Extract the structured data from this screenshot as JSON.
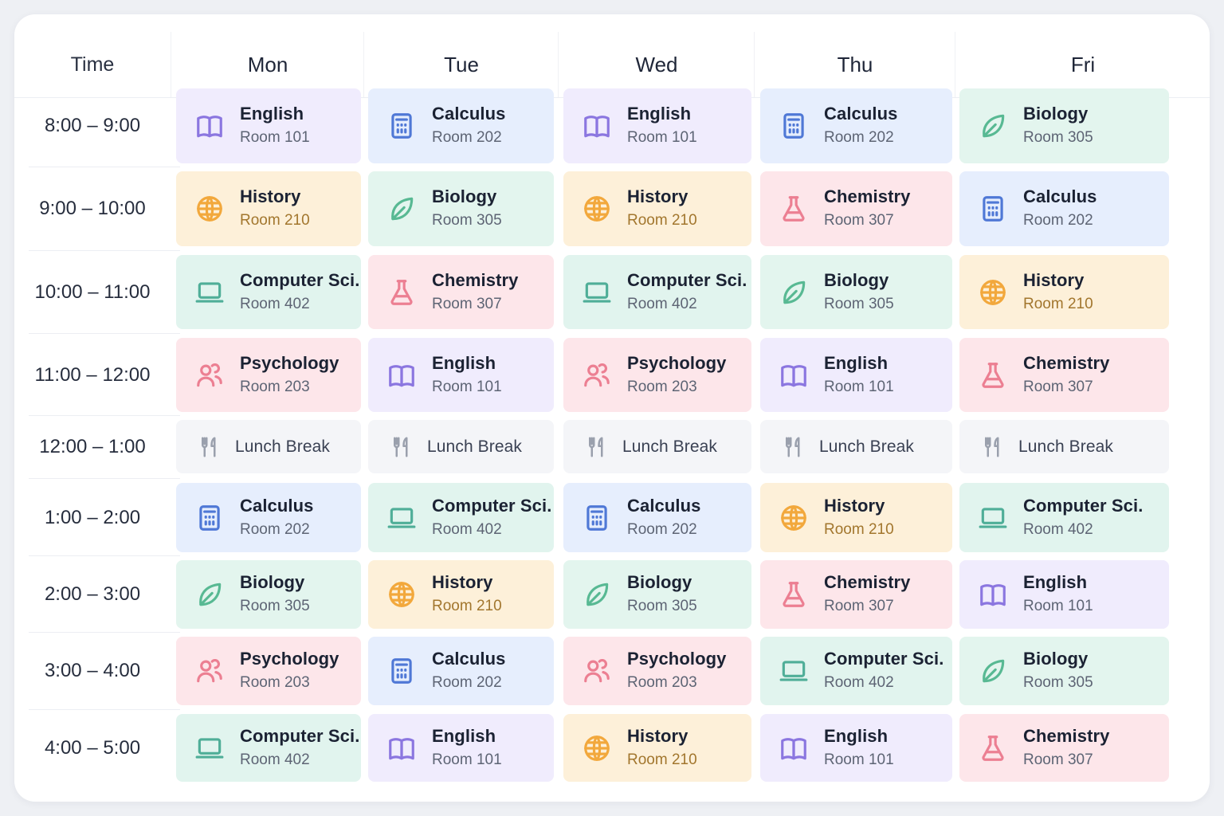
{
  "header": {
    "time_label": "Time",
    "days": [
      "Mon",
      "Tue",
      "Wed",
      "Thu",
      "Fri"
    ]
  },
  "subjects": {
    "english": {
      "name": "English",
      "room": "Room 101",
      "icon": "book-icon",
      "bg": "#f0ecfd",
      "accent": "#8b76e0",
      "room_color": "#5d6474"
    },
    "calculus": {
      "name": "Calculus",
      "room": "Room 202",
      "icon": "calculator-icon",
      "bg": "#e6eefd",
      "accent": "#4f78d6",
      "room_color": "#5d6474"
    },
    "biology": {
      "name": "Biology",
      "room": "Room 305",
      "icon": "leaf-icon",
      "bg": "#e3f5ee",
      "accent": "#58b993",
      "room_color": "#5d6474"
    },
    "history": {
      "name": "History",
      "room": "Room 210",
      "icon": "globe-icon",
      "bg": "#fdf0d9",
      "accent": "#f2a83c",
      "room_color": "#a2762d"
    },
    "chemistry": {
      "name": "Chemistry",
      "room": "Room 307",
      "icon": "flask-icon",
      "bg": "#fde6ea",
      "accent": "#ec7f92",
      "room_color": "#5d6474"
    },
    "compsci": {
      "name": "Computer Sci.",
      "room": "Room 402",
      "icon": "laptop-icon",
      "bg": "#e1f4ee",
      "accent": "#4fae98",
      "room_color": "#5d6474"
    },
    "psychology": {
      "name": "Psychology",
      "room": "Room 203",
      "icon": "people-icon",
      "bg": "#fde6ea",
      "accent": "#ec7f92",
      "room_color": "#5d6474"
    },
    "lunch": {
      "name": "Lunch Break",
      "room": "",
      "icon": "utensils-icon",
      "bg": "#f4f5f8",
      "accent": "#9aa0ad",
      "room_color": "#5d6474"
    }
  },
  "rows": [
    {
      "time": "8:00 – 9:00",
      "cells": [
        "english",
        "calculus",
        "english",
        "calculus",
        "biology"
      ]
    },
    {
      "time": "9:00 – 10:00",
      "cells": [
        "history",
        "biology",
        "history",
        "chemistry",
        "calculus"
      ]
    },
    {
      "time": "10:00 – 11:00",
      "cells": [
        "compsci",
        "chemistry",
        "compsci",
        "biology",
        "history"
      ]
    },
    {
      "time": "11:00 – 12:00",
      "cells": [
        "psychology",
        "english",
        "psychology",
        "english",
        "chemistry"
      ]
    },
    {
      "time": "12:00 – 1:00",
      "cells": [
        "lunch",
        "lunch",
        "lunch",
        "lunch",
        "lunch"
      ]
    },
    {
      "time": "1:00 – 2:00",
      "cells": [
        "calculus",
        "compsci",
        "calculus",
        "history",
        "compsci"
      ]
    },
    {
      "time": "2:00 – 3:00",
      "cells": [
        "biology",
        "history",
        "biology",
        "chemistry",
        "english"
      ]
    },
    {
      "time": "3:00 – 4:00",
      "cells": [
        "psychology",
        "calculus",
        "psychology",
        "compsci",
        "biology"
      ]
    },
    {
      "time": "4:00 – 5:00",
      "cells": [
        "compsci",
        "english",
        "history",
        "english",
        "chemistry"
      ]
    }
  ]
}
